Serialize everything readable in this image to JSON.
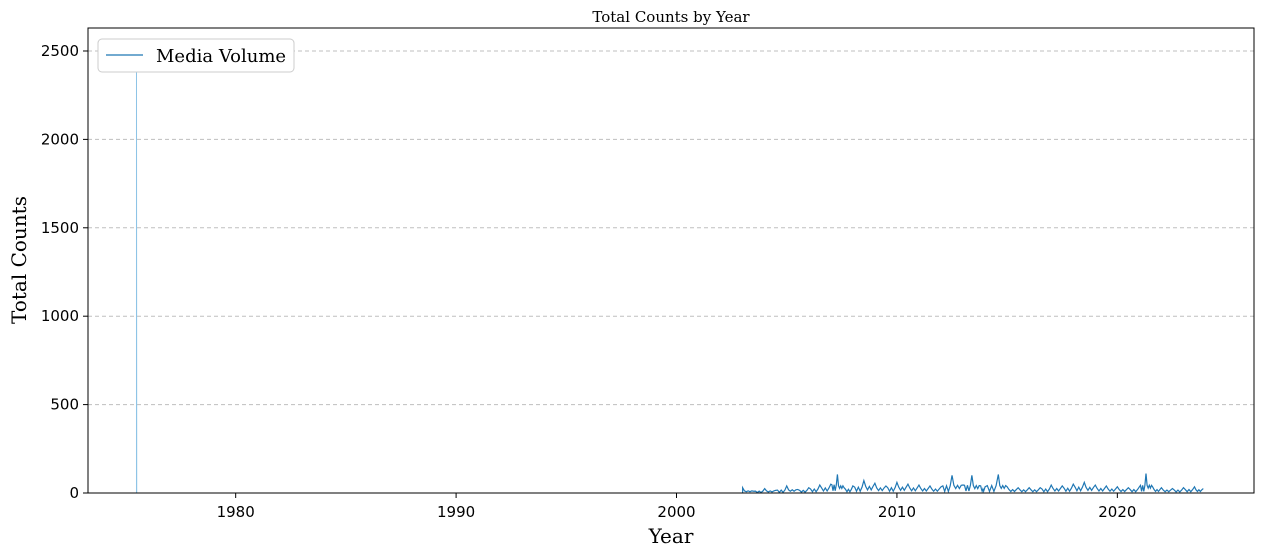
{
  "chart_data": {
    "type": "line",
    "title": "Total Counts by Year",
    "xlabel": "Year",
    "ylabel": "Total Counts",
    "xlim": [
      1973.3,
      2026.2
    ],
    "ylim": [
      0,
      2630
    ],
    "xticks": [
      1980,
      1990,
      2000,
      2010,
      2020
    ],
    "yticks": [
      0,
      500,
      1000,
      1500,
      2000,
      2500
    ],
    "grid": "y-dashed",
    "legend": "upper-left",
    "series": [
      {
        "name": "Media Volume",
        "color": "#1f77b4",
        "spike_color": "#8ec4e6",
        "points": [
          [
            1975.5,
            0
          ],
          [
            1975.5,
            2450
          ],
          [
            1975.51,
            0
          ],
          [
            2003.0,
            0
          ],
          [
            2003.0,
            30
          ],
          [
            2003.5,
            10
          ],
          [
            2004.0,
            25
          ],
          [
            2004.5,
            15
          ],
          [
            2005.0,
            40
          ],
          [
            2005.5,
            20
          ],
          [
            2006.0,
            30
          ],
          [
            2006.5,
            45
          ],
          [
            2007.0,
            50
          ],
          [
            2007.3,
            105
          ],
          [
            2007.6,
            30
          ],
          [
            2008.0,
            40
          ],
          [
            2008.5,
            70
          ],
          [
            2009.0,
            55
          ],
          [
            2009.5,
            40
          ],
          [
            2010.0,
            60
          ],
          [
            2010.5,
            50
          ],
          [
            2011.0,
            45
          ],
          [
            2011.5,
            40
          ],
          [
            2012.0,
            35
          ],
          [
            2012.5,
            100
          ],
          [
            2013.0,
            45
          ],
          [
            2013.4,
            100
          ],
          [
            2013.8,
            40
          ],
          [
            2014.0,
            35
          ],
          [
            2014.6,
            105
          ],
          [
            2015.0,
            35
          ],
          [
            2015.5,
            30
          ],
          [
            2016.0,
            30
          ],
          [
            2016.5,
            30
          ],
          [
            2017.0,
            45
          ],
          [
            2017.5,
            40
          ],
          [
            2018.0,
            50
          ],
          [
            2018.5,
            60
          ],
          [
            2019.0,
            45
          ],
          [
            2019.5,
            40
          ],
          [
            2020.0,
            35
          ],
          [
            2020.5,
            30
          ],
          [
            2021.0,
            35
          ],
          [
            2021.3,
            110
          ],
          [
            2021.6,
            35
          ],
          [
            2022.0,
            30
          ],
          [
            2022.5,
            25
          ],
          [
            2023.0,
            30
          ],
          [
            2023.5,
            35
          ],
          [
            2023.9,
            25
          ]
        ]
      }
    ]
  }
}
